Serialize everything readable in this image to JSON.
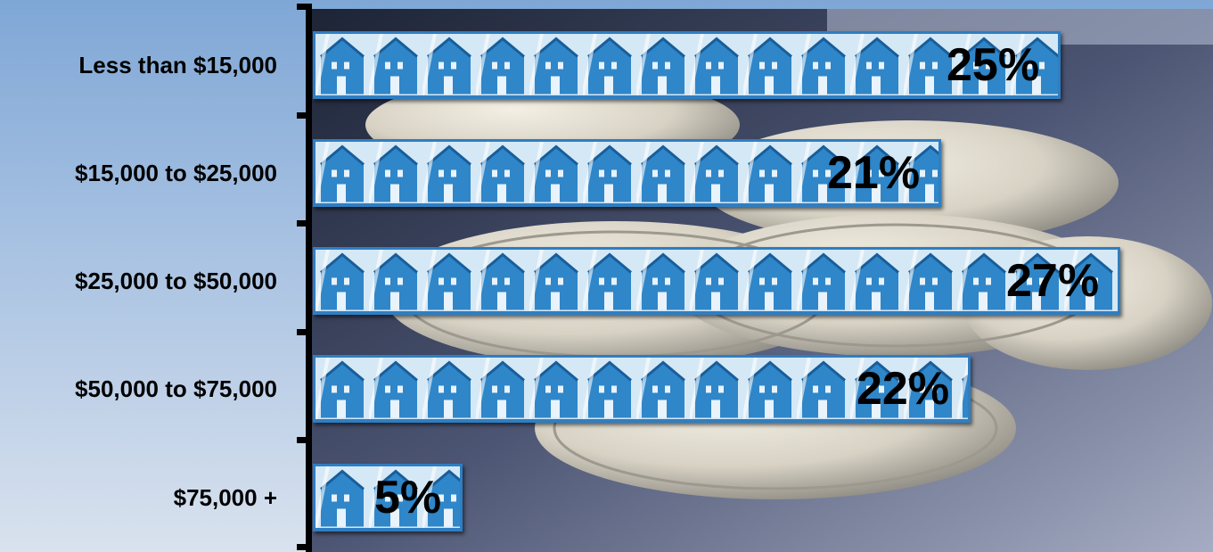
{
  "chart_data": {
    "type": "bar",
    "orientation": "horizontal",
    "categories": [
      "Less than $15,000",
      "$15,000 to $25,000",
      "$25,000 to $50,000",
      "$50,000 to $75,000",
      "$75,000 +"
    ],
    "values": [
      25,
      21,
      27,
      22,
      5
    ],
    "data_labels": [
      "25%",
      "21%",
      "27%",
      "22%",
      "5%"
    ],
    "title": "",
    "xlabel": "",
    "ylabel": "",
    "xlim": [
      0,
      27
    ],
    "grid": false,
    "legend": "none",
    "colors": {
      "bar_border": "#2f7ec2",
      "bar_fill": "#c9e2f5",
      "house_icon": "#2f86c9",
      "axis": "#000000",
      "background_top": "#7fa7d6",
      "background_bottom": "#d9e2ee"
    },
    "bar_pattern_icon": "house-icon",
    "background_image": "coins-photo"
  }
}
